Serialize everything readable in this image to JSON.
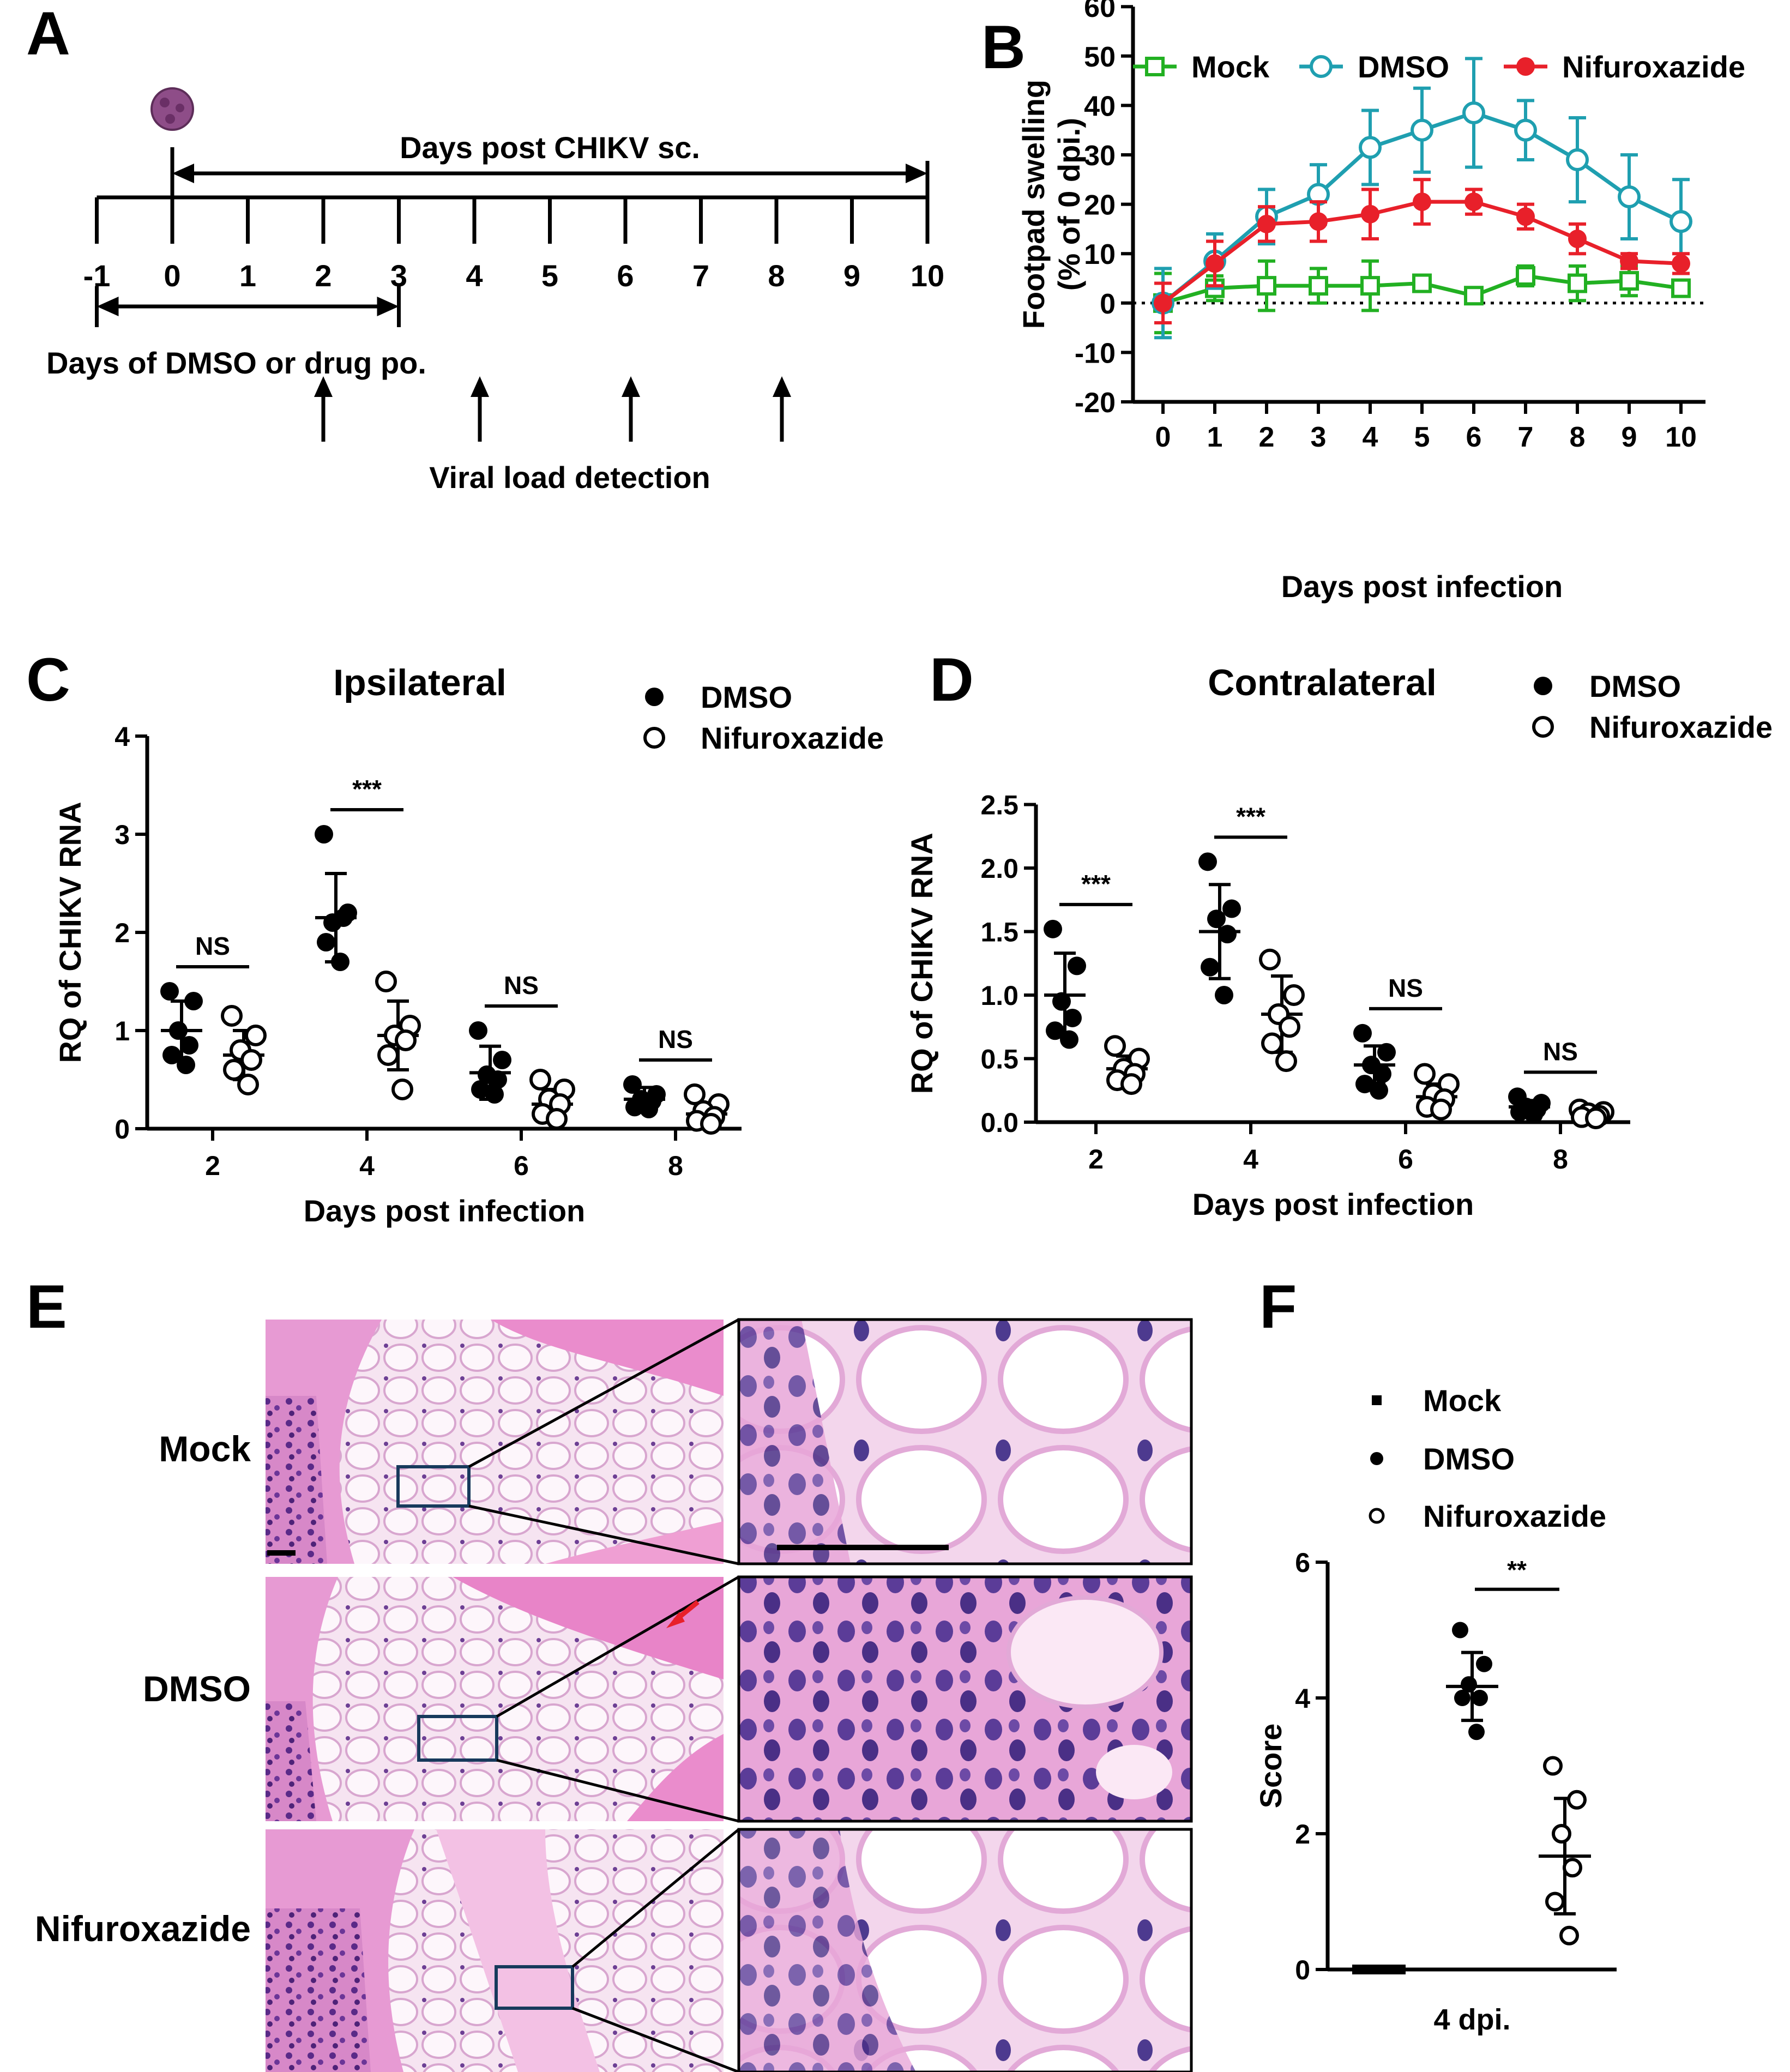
{
  "panel_labels": {
    "a": "A",
    "b": "B",
    "c": "C",
    "d": "D",
    "e": "E",
    "f": "F"
  },
  "colors": {
    "mock": "#22b022",
    "dmso": "#1f9fb0",
    "nif": "#e8202a"
  },
  "chart_data": [
    {
      "panel": "A",
      "type": "timeline",
      "top_label": "Days post CHIKV sc.",
      "ticks": [
        "-1",
        "0",
        "1",
        "2",
        "3",
        "4",
        "5",
        "6",
        "7",
        "8",
        "9",
        "10"
      ],
      "drug_label": "Days of DMSO or drug po.",
      "drug_range": [
        -1,
        3
      ],
      "detect_days": [
        2,
        4,
        6,
        8
      ],
      "detect_label": "Viral load detection",
      "virus_icon": "virus-particle-icon"
    },
    {
      "panel": "B",
      "type": "line",
      "legend": [
        "Mock",
        "DMSO",
        "Nifuroxazide"
      ],
      "xlabel": "Days post infection",
      "ylabel": [
        "Footpad swelling",
        "(% of 0 dpi.)"
      ],
      "x": [
        0,
        1,
        2,
        3,
        4,
        5,
        6,
        7,
        8,
        9,
        10
      ],
      "ylim": [
        -20,
        60
      ],
      "yticks": [
        "-20",
        "-10",
        "0",
        "10",
        "20",
        "30",
        "40",
        "50",
        "60"
      ],
      "series": [
        {
          "name": "Mock",
          "values": [
            0,
            3,
            3.5,
            3.5,
            3.5,
            4,
            1.5,
            5.5,
            4,
            4.5,
            3
          ],
          "err": [
            6,
            2.5,
            5,
            3.5,
            5,
            1,
            1,
            2,
            3.5,
            3,
            1
          ]
        },
        {
          "name": "DMSO",
          "values": [
            0,
            8.5,
            17.5,
            22,
            31.5,
            35,
            38.5,
            35,
            29,
            21.5,
            16.5
          ],
          "err": [
            7,
            5.5,
            5.5,
            6,
            7.5,
            8.5,
            11,
            6,
            8.5,
            8.5,
            8.5
          ]
        },
        {
          "name": "Nifuroxazide",
          "values": [
            0,
            8,
            16,
            16.5,
            18,
            20.5,
            20.5,
            17.5,
            13,
            8.5,
            8
          ],
          "err": [
            4,
            4.5,
            3.5,
            4,
            5,
            4.5,
            2.5,
            2.5,
            3,
            1.5,
            2
          ]
        }
      ]
    },
    {
      "panel": "C",
      "type": "scatter-dot",
      "title": "Ipsilateral",
      "legend": [
        "DMSO",
        "Nifuroxazide"
      ],
      "xlabel": "Days post infection",
      "ylabel": "RQ of CHIKV RNA",
      "categories": [
        "2",
        "4",
        "6",
        "8"
      ],
      "ylim": [
        0,
        4
      ],
      "yticks": [
        "0",
        "1",
        "2",
        "3",
        "4"
      ],
      "significance": [
        "NS",
        "***",
        "NS",
        "NS"
      ],
      "series": [
        {
          "name": "DMSO",
          "mean": [
            1.0,
            2.15,
            0.57,
            0.3
          ],
          "sd": [
            0.3,
            0.45,
            0.27,
            0.12
          ],
          "points": [
            [
              1.4,
              1.3,
              1.0,
              0.85,
              0.75,
              0.65
            ],
            [
              3.0,
              2.2,
              2.1,
              2.15,
              1.9,
              1.7
            ],
            [
              1.0,
              0.7,
              0.55,
              0.5,
              0.4,
              0.35
            ],
            [
              0.45,
              0.35,
              0.3,
              0.28,
              0.22,
              0.2
            ]
          ]
        },
        {
          "name": "Nifuroxazide",
          "mean": [
            0.75,
            0.95,
            0.25,
            0.15
          ],
          "sd": [
            0.25,
            0.35,
            0.15,
            0.1
          ],
          "points": [
            [
              1.15,
              0.95,
              0.8,
              0.7,
              0.6,
              0.45
            ],
            [
              1.5,
              1.05,
              0.95,
              0.9,
              0.75,
              0.4
            ],
            [
              0.5,
              0.4,
              0.3,
              0.25,
              0.15,
              0.1
            ],
            [
              0.35,
              0.25,
              0.18,
              0.12,
              0.08,
              0.05
            ]
          ]
        }
      ]
    },
    {
      "panel": "D",
      "type": "scatter-dot",
      "title": "Contralateral",
      "legend": [
        "DMSO",
        "Nifuroxazide"
      ],
      "xlabel": "Days post infection",
      "ylabel": "RQ of CHIKV RNA",
      "categories": [
        "2",
        "4",
        "6",
        "8"
      ],
      "ylim": [
        0,
        2.5
      ],
      "yticks": [
        "0.0",
        "0.5",
        "1.0",
        "1.5",
        "2.0",
        "2.5"
      ],
      "significance": [
        "***",
        "***",
        "NS",
        "NS"
      ],
      "series": [
        {
          "name": "DMSO",
          "mean": [
            1.0,
            1.5,
            0.45,
            0.12
          ],
          "sd": [
            0.33,
            0.37,
            0.15,
            0.05
          ],
          "points": [
            [
              1.52,
              1.23,
              0.95,
              0.82,
              0.72,
              0.65
            ],
            [
              2.05,
              1.68,
              1.6,
              1.48,
              1.22,
              1.0
            ],
            [
              0.7,
              0.55,
              0.45,
              0.38,
              0.3,
              0.25
            ],
            [
              0.2,
              0.15,
              0.12,
              0.1,
              0.08,
              0.06
            ]
          ]
        },
        {
          "name": "Nifuroxazide",
          "mean": [
            0.42,
            0.85,
            0.2,
            0.06
          ],
          "sd": [
            0.1,
            0.3,
            0.1,
            0.03
          ],
          "points": [
            [
              0.6,
              0.5,
              0.42,
              0.38,
              0.33,
              0.3
            ],
            [
              1.28,
              1.0,
              0.85,
              0.75,
              0.62,
              0.48
            ],
            [
              0.38,
              0.3,
              0.22,
              0.18,
              0.12,
              0.1
            ],
            [
              0.1,
              0.08,
              0.07,
              0.05,
              0.04,
              0.03
            ]
          ]
        }
      ]
    },
    {
      "panel": "F",
      "type": "scatter-dot",
      "legend": [
        "Mock",
        "DMSO",
        "Nifuroxazide"
      ],
      "ylabel": "Score",
      "xlabel": "4 dpi.",
      "ylim": [
        0,
        6
      ],
      "yticks": [
        "0",
        "2",
        "4",
        "6"
      ],
      "significance": "**",
      "series": [
        {
          "name": "Mock",
          "mean": 0,
          "sd": 0,
          "points": [
            0,
            0,
            0,
            0,
            0,
            0
          ]
        },
        {
          "name": "DMSO",
          "mean": 4.17,
          "sd": 0.5,
          "points": [
            5,
            4.5,
            4.2,
            4,
            4,
            3.5
          ]
        },
        {
          "name": "Nifuroxazide",
          "mean": 1.67,
          "sd": 0.85,
          "points": [
            3,
            2.5,
            2,
            1.5,
            1,
            0.5
          ]
        }
      ]
    }
  ],
  "panel_e": {
    "rows": [
      "Mock",
      "DMSO",
      "Nifuroxazide"
    ],
    "images": [
      "he-stained-tissue-mock",
      "he-stained-tissue-dmso",
      "he-stained-tissue-nifuroxazide"
    ],
    "marker": "red-arrow-icon"
  }
}
